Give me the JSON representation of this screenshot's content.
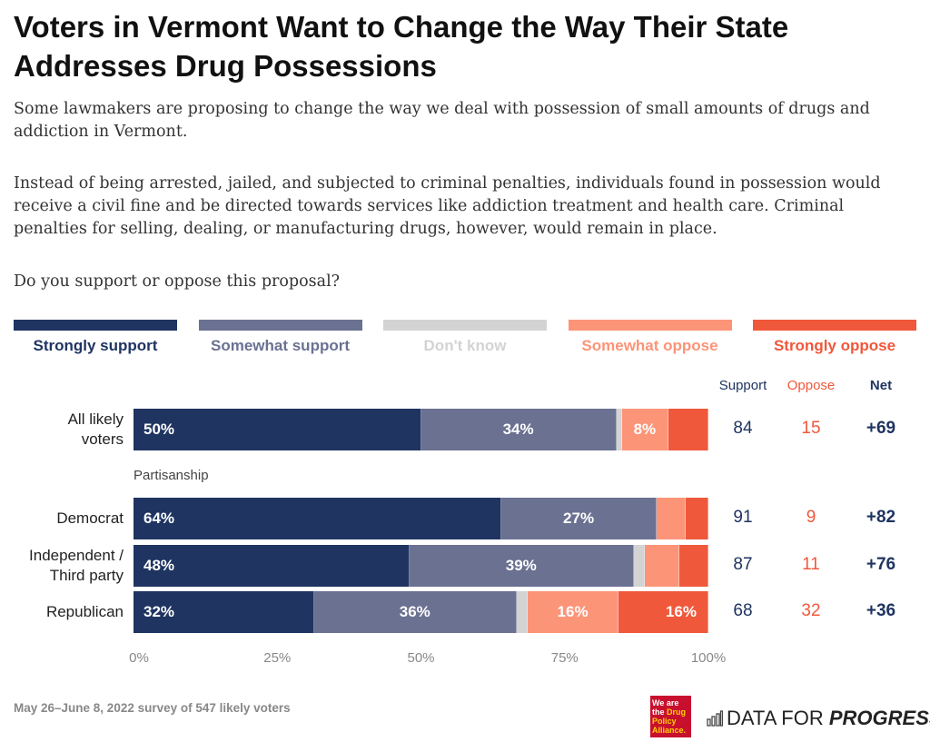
{
  "chart_data": {
    "type": "bar",
    "orientation": "horizontal-stacked",
    "title": "Voters in Vermont Want to Change the Way Their State Addresses Drug Possessions",
    "paragraphs": [
      "Some lawmakers are proposing to change the way we deal with possession of small amounts of drugs and addiction in Vermont.",
      "Instead of being arrested, jailed, and subjected to criminal penalties, individuals found in possession would receive a civil fine and be directed towards services like addiction treatment and health care. Criminal penalties for selling, dealing, or manufacturing drugs, however, would remain in place.",
      "Do you support or oppose this proposal?"
    ],
    "legend": [
      {
        "name": "Strongly support",
        "color": "#1f3461"
      },
      {
        "name": "Somewhat support",
        "color": "#6a7191"
      },
      {
        "name": "Don't know",
        "color": "#d3d3d3"
      },
      {
        "name": "Somewhat oppose",
        "color": "#fc9478"
      },
      {
        "name": "Strongly oppose",
        "color": "#f0583b"
      }
    ],
    "column_headers": {
      "support": "Support",
      "oppose": "Oppose",
      "net": "Net"
    },
    "group_label": "Partisanship",
    "rows": [
      {
        "label": "All likely voters",
        "values": [
          50,
          34,
          1,
          8,
          7
        ],
        "labels": [
          "50%",
          "34%",
          "",
          "8%",
          ""
        ],
        "support": "84",
        "oppose": "15",
        "net": "+69"
      },
      {
        "label": "Democrat",
        "values": [
          64,
          27,
          0,
          5,
          4
        ],
        "labels": [
          "64%",
          "27%",
          "",
          "",
          ""
        ],
        "support": "91",
        "oppose": "9",
        "net": "+82"
      },
      {
        "label": "Independent / Third party",
        "values": [
          48,
          39,
          2,
          6,
          5
        ],
        "labels": [
          "48%",
          "39%",
          "",
          "",
          ""
        ],
        "support": "87",
        "oppose": "11",
        "net": "+76"
      },
      {
        "label": "Republican",
        "values": [
          32,
          36,
          2,
          16,
          16
        ],
        "labels": [
          "32%",
          "36%",
          "",
          "16%",
          "16%"
        ],
        "support": "68",
        "oppose": "32",
        "net": "+36"
      }
    ],
    "x_ticks": [
      "0%",
      "25%",
      "50%",
      "75%",
      "100%"
    ],
    "xlim": [
      0,
      100
    ]
  },
  "footer": {
    "source": "May 26–June 8, 2022 survey of 547 likely voters",
    "dpa_logo": "We are the Drug Policy Alliance.",
    "dfp_logo_a": "DATA FOR ",
    "dfp_logo_b": "PROGRESS"
  }
}
